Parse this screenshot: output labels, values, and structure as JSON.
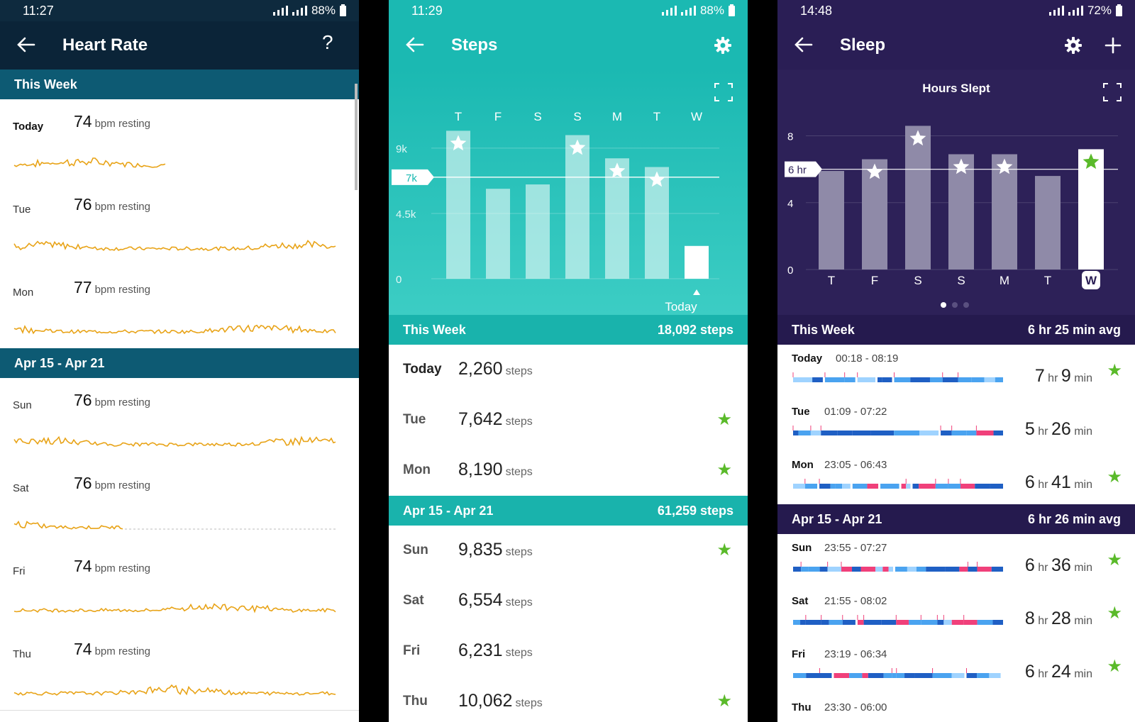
{
  "heart_rate": {
    "status": {
      "time": "11:27",
      "battery": "88%"
    },
    "title": "Heart Rate",
    "sections": [
      {
        "label": "This Week",
        "rows": [
          {
            "day": "Today",
            "value": "74",
            "unit": "bpm resting"
          },
          {
            "day": "Tue",
            "value": "76",
            "unit": "bpm resting"
          },
          {
            "day": "Mon",
            "value": "77",
            "unit": "bpm resting"
          }
        ]
      },
      {
        "label": "Apr 15 - Apr 21",
        "rows": [
          {
            "day": "Sun",
            "value": "76",
            "unit": "bpm resting"
          },
          {
            "day": "Sat",
            "value": "76",
            "unit": "bpm resting"
          },
          {
            "day": "Fri",
            "value": "74",
            "unit": "bpm resting"
          },
          {
            "day": "Thu",
            "value": "74",
            "unit": "bpm resting"
          }
        ]
      }
    ],
    "line_color": "#e8a317"
  },
  "steps": {
    "status": {
      "time": "11:29",
      "battery": "88%"
    },
    "title": "Steps",
    "chart_data": {
      "type": "bar",
      "categories": [
        "T",
        "F",
        "S",
        "S",
        "M",
        "T",
        "W"
      ],
      "values": [
        10200,
        6200,
        6500,
        9900,
        8300,
        7700,
        2260
      ],
      "goal_met": [
        true,
        false,
        false,
        true,
        true,
        true,
        false
      ],
      "goal": 7000,
      "goal_label": "7k",
      "y_ticks": [
        {
          "value": 0,
          "label": "0"
        },
        {
          "value": 4500,
          "label": "4.5k"
        },
        {
          "value": 9000,
          "label": "9k"
        }
      ],
      "ylim": [
        0,
        11000
      ],
      "today_label": "Today"
    },
    "sections": [
      {
        "label": "This Week",
        "total": "18,092 steps",
        "rows": [
          {
            "day": "Today",
            "value": "2,260",
            "unit": "steps",
            "star": false
          },
          {
            "day": "Tue",
            "value": "7,642",
            "unit": "steps",
            "star": true
          },
          {
            "day": "Mon",
            "value": "8,190",
            "unit": "steps",
            "star": true
          }
        ]
      },
      {
        "label": "Apr 15 - Apr 21",
        "total": "61,259 steps",
        "rows": [
          {
            "day": "Sun",
            "value": "9,835",
            "unit": "steps",
            "star": true
          },
          {
            "day": "Sat",
            "value": "6,554",
            "unit": "steps",
            "star": false
          },
          {
            "day": "Fri",
            "value": "6,231",
            "unit": "steps",
            "star": false
          },
          {
            "day": "Thu",
            "value": "10,062",
            "unit": "steps",
            "star": true
          }
        ]
      }
    ]
  },
  "sleep": {
    "status": {
      "time": "14:48",
      "battery": "72%"
    },
    "title": "Sleep",
    "chart_data": {
      "type": "bar",
      "title": "Hours Slept",
      "categories": [
        "T",
        "F",
        "S",
        "S",
        "M",
        "T",
        "W"
      ],
      "values": [
        5.9,
        6.6,
        8.6,
        6.9,
        6.9,
        5.6,
        7.2
      ],
      "goal_met": [
        false,
        true,
        true,
        true,
        true,
        false,
        true
      ],
      "goal": 6,
      "goal_label": "6 hr",
      "y_ticks": [
        {
          "value": 0,
          "label": "0"
        },
        {
          "value": 4,
          "label": "4"
        },
        {
          "value": 8,
          "label": "8"
        }
      ],
      "ylim": [
        0,
        9
      ]
    },
    "sections": [
      {
        "label": "This Week",
        "avg": "6 hr 25 min avg",
        "rows": [
          {
            "day": "Today",
            "time": "00:18 - 08:19",
            "h": "7",
            "m": "9",
            "star": true
          },
          {
            "day": "Tue",
            "time": "01:09 - 07:22",
            "h": "5",
            "m": "26",
            "star": false
          },
          {
            "day": "Mon",
            "time": "23:05 - 06:43",
            "h": "6",
            "m": "41",
            "star": true
          }
        ]
      },
      {
        "label": "Apr 15 - Apr 21",
        "avg": "6 hr 26 min avg",
        "rows": [
          {
            "day": "Sun",
            "time": "23:55 - 07:27",
            "h": "6",
            "m": "36",
            "star": true
          },
          {
            "day": "Sat",
            "time": "21:55 - 08:02",
            "h": "8",
            "m": "28",
            "star": true
          },
          {
            "day": "Fri",
            "time": "23:19 - 06:34",
            "h": "6",
            "m": "24",
            "star": true
          },
          {
            "day": "Thu",
            "time": "23:30 - 06:00",
            "h": "",
            "m": "",
            "star": false
          }
        ]
      }
    ],
    "units": {
      "hr": "hr",
      "min": "min"
    }
  }
}
